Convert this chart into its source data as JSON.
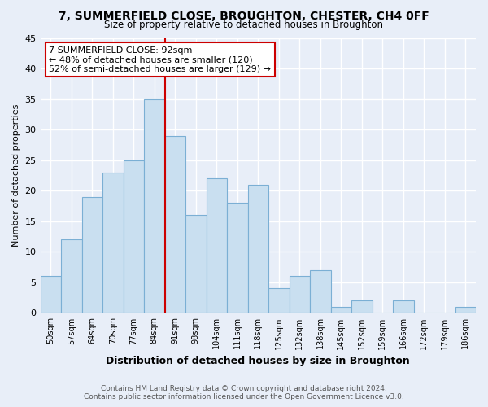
{
  "title": "7, SUMMERFIELD CLOSE, BROUGHTON, CHESTER, CH4 0FF",
  "subtitle": "Size of property relative to detached houses in Broughton",
  "xlabel": "Distribution of detached houses by size in Broughton",
  "ylabel": "Number of detached properties",
  "footer_line1": "Contains HM Land Registry data © Crown copyright and database right 2024.",
  "footer_line2": "Contains public sector information licensed under the Open Government Licence v3.0.",
  "bar_labels": [
    "50sqm",
    "57sqm",
    "64sqm",
    "70sqm",
    "77sqm",
    "84sqm",
    "91sqm",
    "98sqm",
    "104sqm",
    "111sqm",
    "118sqm",
    "125sqm",
    "132sqm",
    "138sqm",
    "145sqm",
    "152sqm",
    "159sqm",
    "166sqm",
    "172sqm",
    "179sqm",
    "186sqm"
  ],
  "bar_values": [
    6,
    12,
    19,
    23,
    25,
    35,
    29,
    16,
    22,
    18,
    21,
    4,
    6,
    7,
    1,
    2,
    0,
    2,
    0,
    0,
    1
  ],
  "bar_color": "#c9dff0",
  "bar_edge_color": "#7bafd4",
  "highlight_index": 6,
  "highlight_line_color": "#cc0000",
  "ylim": [
    0,
    45
  ],
  "yticks": [
    0,
    5,
    10,
    15,
    20,
    25,
    30,
    35,
    40,
    45
  ],
  "annotation_title": "7 SUMMERFIELD CLOSE: 92sqm",
  "annotation_line1": "← 48% of detached houses are smaller (120)",
  "annotation_line2": "52% of semi-detached houses are larger (129) →",
  "annotation_box_color": "#ffffff",
  "annotation_box_edge": "#cc0000",
  "bg_color": "#e8eef8",
  "grid_color": "#ffffff",
  "plot_bg_color": "#dce6f5"
}
